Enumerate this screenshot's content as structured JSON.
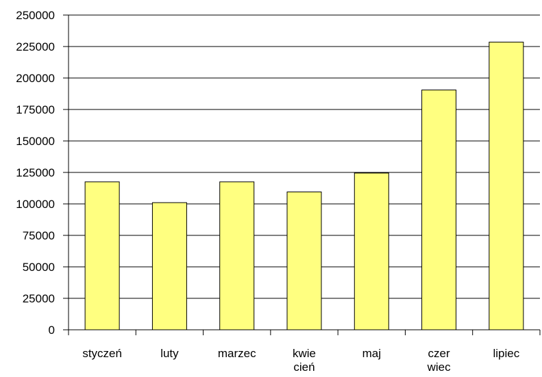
{
  "chart_data": {
    "type": "bar",
    "categories": [
      [
        "styczeń"
      ],
      [
        "luty"
      ],
      [
        "marzec"
      ],
      [
        "kwie",
        "cień"
      ],
      [
        "maj"
      ],
      [
        "czer",
        "wiec"
      ],
      [
        "lipiec"
      ]
    ],
    "values": [
      117500,
      101000,
      117500,
      109500,
      124500,
      190500,
      228500
    ],
    "ylim": [
      0,
      250000
    ],
    "yticks": [
      0,
      25000,
      50000,
      75000,
      100000,
      125000,
      150000,
      175000,
      200000,
      225000,
      250000
    ],
    "grid": true,
    "bar_color": "#ffff80",
    "bar_edge_color": "#000000",
    "title": "",
    "xlabel": "",
    "ylabel": ""
  }
}
